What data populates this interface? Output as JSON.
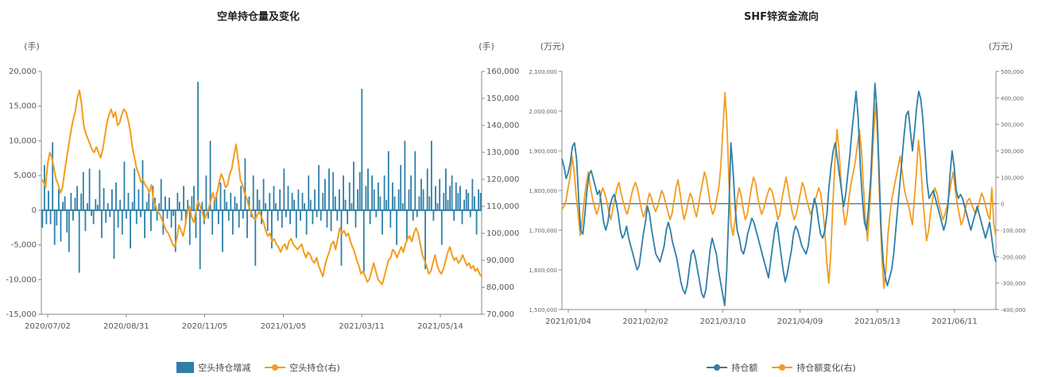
{
  "chart_data": [
    {
      "type": "bar+line",
      "title": "空单持仓量及变化",
      "left_unit": "(手)",
      "right_unit": "(手)",
      "left_ylim": [
        -15000,
        20000
      ],
      "right_ylim": [
        70000,
        160000
      ],
      "left_ticks": [
        "20,000",
        "15,000",
        "10,000",
        "5,000",
        "0",
        "-5,000",
        "-10,000",
        "-15,000"
      ],
      "right_ticks": [
        "160,000",
        "150,000",
        "140,000",
        "130,000",
        "120,000",
        "110,000",
        "100,000",
        "90,000",
        "80,000",
        "70,000"
      ],
      "x_ticks": [
        "2020/07/02",
        "2020/08/31",
        "2020/11/05",
        "2021/01/05",
        "2021/03/11",
        "2021/05/14"
      ],
      "legend": [
        "空头持仓增减",
        "空头持仓(右)"
      ],
      "colors": {
        "bar": "#2e7fa8",
        "line": "#f39c1e"
      },
      "series": [
        {
          "name": "空头持仓增减",
          "axis": "left",
          "type": "bar",
          "values": [
            -2500,
            6500,
            -2000,
            2800,
            -2000,
            9800,
            -5000,
            -2200,
            3000,
            -4500,
            1200,
            2000,
            -3200,
            -6000,
            2500,
            -1500,
            1800,
            3500,
            -9000,
            2400,
            5500,
            -3000,
            1000,
            6000,
            -800,
            -2000,
            1600,
            800,
            5800,
            -4000,
            3200,
            -1800,
            1000,
            -1000,
            3000,
            -7000,
            4000,
            -2500,
            1500,
            -3500,
            7000,
            -1200,
            2500,
            -5500,
            1200,
            6000,
            -2000,
            3000,
            -1000,
            7200,
            -4000,
            1200,
            2400,
            -3000,
            3500,
            1800,
            -1500,
            1000,
            4500,
            -3500,
            2000,
            -1200,
            1800,
            -2500,
            -800,
            -6000,
            2500,
            1200,
            -1500,
            3500,
            -2000,
            1500,
            -5000,
            2000,
            3500,
            -4000,
            18500,
            -8500,
            1200,
            -2000,
            5000,
            -1200,
            10000,
            -3500,
            1500,
            2500,
            -2000,
            4000,
            -6000,
            3000,
            1200,
            -1500,
            2500,
            -3500,
            2000,
            1000,
            -2500,
            3500,
            -1200,
            7500,
            -4000,
            2000,
            -1000,
            5000,
            -8000,
            3000,
            1500,
            -2000,
            4500,
            1000,
            -3000,
            2500,
            -5500,
            3500,
            1000,
            -1500,
            3000,
            -2500,
            6000,
            -1000,
            3500,
            -2000,
            2500,
            1500,
            -4000,
            3000,
            -1500,
            2500,
            1000,
            -3500,
            5000,
            1500,
            -2000,
            3000,
            -1000,
            6500,
            -1500,
            2500,
            4500,
            -2500,
            6000,
            -3000,
            5500,
            2000,
            -1500,
            3000,
            -8000,
            5000,
            1500,
            -2000,
            4000,
            1000,
            7000,
            -2500,
            3000,
            5500,
            17500,
            -9000,
            3500,
            6000,
            -2000,
            5000,
            3000,
            -1000,
            4000,
            2000,
            -3500,
            5000,
            1500,
            8500,
            -2500,
            4000,
            2000,
            -5000,
            3000,
            6500,
            1000,
            10000,
            -4500,
            3000,
            5000,
            -1500,
            8500,
            -1000,
            2000,
            4500,
            3000,
            -8500,
            6000,
            2000,
            10000,
            -1500,
            3500,
            1000,
            4500,
            -5000,
            2500,
            6000,
            1500,
            3500,
            5000,
            -1500,
            4000,
            2500,
            3500,
            -2000,
            1500,
            3000,
            2500,
            -1000,
            4500,
            2000,
            -3500,
            3000,
            2500
          ]
        },
        {
          "name": "空头持仓(右)",
          "axis": "right",
          "type": "line",
          "values": [
            120000,
            119000,
            117000,
            126000,
            130000,
            128000,
            124000,
            120000,
            118000,
            115000,
            117000,
            123000,
            128000,
            133000,
            138000,
            142000,
            145000,
            150000,
            153000,
            148000,
            140000,
            137000,
            135000,
            133000,
            131000,
            130000,
            132000,
            130000,
            128000,
            131000,
            136000,
            141000,
            144000,
            146000,
            143000,
            145000,
            140000,
            141000,
            144000,
            146000,
            145000,
            142000,
            138000,
            132000,
            128000,
            124000,
            122000,
            119000,
            120000,
            118000,
            117000,
            115000,
            118000,
            112000,
            110000,
            108000,
            107000,
            105000,
            103000,
            101000,
            100000,
            98000,
            96000,
            95000,
            98000,
            103000,
            101000,
            99000,
            103000,
            108000,
            110000,
            106000,
            104000,
            108000,
            112000,
            110000,
            108000,
            105000,
            107000,
            109000,
            112000,
            115000,
            112000,
            115000,
            119000,
            122000,
            120000,
            117000,
            118000,
            122000,
            124000,
            129000,
            133000,
            127000,
            120000,
            118000,
            115000,
            113000,
            110000,
            108000,
            106000,
            105000,
            107000,
            108000,
            106000,
            104000,
            101000,
            99000,
            100000,
            97000,
            98000,
            96000,
            95000,
            93000,
            95000,
            96000,
            94000,
            97000,
            98000,
            96000,
            95000,
            94000,
            95000,
            96000,
            93000,
            91000,
            93000,
            92000,
            90000,
            89000,
            91000,
            88000,
            86000,
            84000,
            88000,
            91000,
            93000,
            96000,
            97000,
            94000,
            98000,
            102000,
            100000,
            101000,
            99000,
            100000,
            97000,
            95000,
            93000,
            90000,
            88000,
            85000,
            86000,
            84000,
            82000,
            83000,
            86000,
            89000,
            86000,
            83000,
            82000,
            81000,
            84000,
            87000,
            90000,
            91000,
            94000,
            93000,
            91000,
            93000,
            95000,
            93000,
            96000,
            98000,
            99000,
            97000,
            100000,
            102000,
            100000,
            96000,
            92000,
            90000,
            88000,
            85000,
            86000,
            89000,
            92000,
            88000,
            86000,
            85000,
            87000,
            90000,
            93000,
            95000,
            92000,
            90000,
            91000,
            89000,
            90000,
            92000,
            90000,
            88000,
            89000,
            87000,
            88000,
            86000,
            87000,
            85000,
            84000
          ]
        }
      ]
    },
    {
      "type": "line",
      "title": "SHF锌资金流向",
      "left_unit": "(万元)",
      "right_unit": "(万元)",
      "left_ylim": [
        1500000,
        2100000
      ],
      "right_ylim": [
        -400000,
        500000
      ],
      "left_ticks": [
        "2,100,000",
        "2,000,000",
        "1,900,000",
        "1,800,000",
        "1,700,000",
        "1,600,000",
        "1,500,000"
      ],
      "right_ticks": [
        "500,000",
        "400,000",
        "300,000",
        "200,000",
        "100,000",
        "0",
        "-100,000",
        "-200,000",
        "-300,000",
        "-400,000"
      ],
      "x_ticks": [
        "2021/01/04",
        "2021/02/02",
        "2021/03/10",
        "2021/04/09",
        "2021/05/13",
        "2021/06/11"
      ],
      "legend": [
        "持仓额",
        "持仓额变化(右)"
      ],
      "colors": {
        "a": "#2e7fa8",
        "b": "#f39c1e"
      },
      "series": [
        {
          "name": "持仓额",
          "axis": "left",
          "values": [
            1880000,
            1860000,
            1830000,
            1845000,
            1870000,
            1910000,
            1920000,
            1880000,
            1780000,
            1700000,
            1690000,
            1740000,
            1800000,
            1840000,
            1850000,
            1830000,
            1810000,
            1790000,
            1800000,
            1760000,
            1720000,
            1700000,
            1720000,
            1760000,
            1780000,
            1790000,
            1770000,
            1740000,
            1700000,
            1680000,
            1690000,
            1710000,
            1680000,
            1660000,
            1640000,
            1620000,
            1600000,
            1610000,
            1650000,
            1690000,
            1720000,
            1760000,
            1740000,
            1700000,
            1670000,
            1640000,
            1630000,
            1620000,
            1640000,
            1660000,
            1700000,
            1720000,
            1700000,
            1670000,
            1650000,
            1630000,
            1600000,
            1570000,
            1550000,
            1540000,
            1560000,
            1600000,
            1640000,
            1650000,
            1630000,
            1600000,
            1570000,
            1540000,
            1530000,
            1550000,
            1600000,
            1650000,
            1680000,
            1660000,
            1640000,
            1600000,
            1570000,
            1540000,
            1510000,
            1600000,
            1750000,
            1920000,
            1850000,
            1760000,
            1700000,
            1680000,
            1650000,
            1640000,
            1660000,
            1690000,
            1710000,
            1730000,
            1720000,
            1700000,
            1680000,
            1660000,
            1640000,
            1620000,
            1600000,
            1580000,
            1620000,
            1660000,
            1700000,
            1720000,
            1680000,
            1640000,
            1600000,
            1570000,
            1590000,
            1620000,
            1650000,
            1690000,
            1710000,
            1700000,
            1680000,
            1660000,
            1650000,
            1640000,
            1660000,
            1700000,
            1750000,
            1780000,
            1760000,
            1720000,
            1690000,
            1680000,
            1700000,
            1740000,
            1810000,
            1860000,
            1900000,
            1920000,
            1880000,
            1840000,
            1800000,
            1760000,
            1790000,
            1840000,
            1890000,
            1950000,
            2000000,
            2050000,
            1980000,
            1860000,
            1780000,
            1720000,
            1700000,
            1760000,
            1830000,
            1950000,
            2070000,
            2000000,
            1850000,
            1700000,
            1620000,
            1580000,
            1560000,
            1580000,
            1600000,
            1640000,
            1700000,
            1760000,
            1820000,
            1880000,
            1940000,
            1990000,
            2000000,
            1950000,
            1900000,
            1950000,
            2010000,
            2050000,
            2030000,
            1980000,
            1900000,
            1820000,
            1780000,
            1790000,
            1800000,
            1780000,
            1760000,
            1740000,
            1720000,
            1700000,
            1720000,
            1760000,
            1840000,
            1900000,
            1860000,
            1800000,
            1780000,
            1790000,
            1780000,
            1760000,
            1740000,
            1720000,
            1700000,
            1720000,
            1740000,
            1760000,
            1740000,
            1720000,
            1700000,
            1680000,
            1700000,
            1720000,
            1680000,
            1640000,
            1620000
          ]
        },
        {
          "name": "持仓额变化(右)",
          "axis": "right",
          "values": [
            -20000,
            -10000,
            10000,
            60000,
            100000,
            180000,
            120000,
            30000,
            -40000,
            -120000,
            -60000,
            20000,
            80000,
            120000,
            60000,
            20000,
            -10000,
            -40000,
            -20000,
            30000,
            60000,
            40000,
            10000,
            -30000,
            -60000,
            -20000,
            20000,
            60000,
            80000,
            40000,
            10000,
            -20000,
            -40000,
            -10000,
            30000,
            60000,
            80000,
            60000,
            20000,
            -20000,
            -50000,
            -30000,
            10000,
            40000,
            20000,
            -10000,
            -30000,
            -10000,
            20000,
            50000,
            30000,
            0,
            -30000,
            -60000,
            -40000,
            10000,
            60000,
            90000,
            40000,
            -20000,
            -60000,
            -30000,
            10000,
            40000,
            20000,
            -20000,
            -50000,
            -10000,
            40000,
            80000,
            120000,
            90000,
            40000,
            -10000,
            -40000,
            -20000,
            20000,
            60000,
            140000,
            280000,
            420000,
            300000,
            80000,
            -80000,
            -120000,
            -60000,
            20000,
            60000,
            30000,
            -20000,
            -60000,
            -40000,
            10000,
            60000,
            100000,
            80000,
            30000,
            -10000,
            -40000,
            -20000,
            10000,
            40000,
            60000,
            50000,
            20000,
            -20000,
            -60000,
            -40000,
            20000,
            60000,
            100000,
            60000,
            10000,
            -30000,
            -60000,
            -40000,
            0,
            40000,
            80000,
            60000,
            20000,
            -10000,
            -40000,
            -20000,
            10000,
            30000,
            60000,
            40000,
            -20000,
            -100000,
            -220000,
            -300000,
            -180000,
            0,
            160000,
            280000,
            200000,
            80000,
            -20000,
            -80000,
            -40000,
            30000,
            80000,
            120000,
            160000,
            220000,
            280000,
            200000,
            60000,
            -60000,
            -140000,
            -20000,
            120000,
            260000,
            380000,
            240000,
            0,
            -200000,
            -320000,
            -250000,
            -120000,
            -40000,
            20000,
            60000,
            100000,
            140000,
            180000,
            120000,
            60000,
            20000,
            0,
            -40000,
            -80000,
            20000,
            120000,
            240000,
            160000,
            40000,
            -60000,
            -140000,
            -100000,
            -30000,
            20000,
            60000,
            40000,
            0,
            -30000,
            -60000,
            -40000,
            -10000,
            30000,
            80000,
            120000,
            60000,
            0,
            -40000,
            -80000,
            -60000,
            -20000,
            10000,
            20000,
            0,
            -20000,
            -40000,
            -20000,
            10000,
            40000,
            20000,
            -10000,
            -40000,
            -60000,
            60000,
            -80000,
            -120000
          ]
        }
      ]
    }
  ]
}
